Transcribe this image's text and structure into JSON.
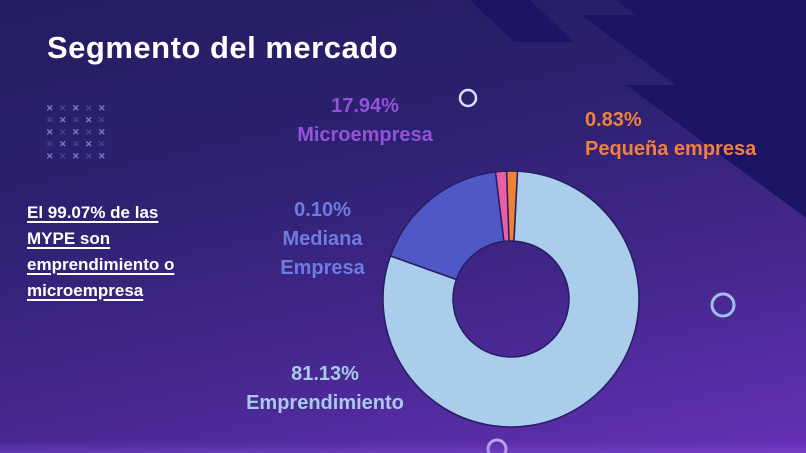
{
  "slide": {
    "title": "Segmento del mercado",
    "callout_lines": [
      "El 99.07% de las",
      "MYPE son",
      "emprendimiento o",
      "microempresa"
    ]
  },
  "chart_data": {
    "type": "pie",
    "subtype": "donut",
    "title": "Segmento del mercado",
    "annotation": "El 99.07% de las MYPE son emprendimiento o microempresa",
    "start_angle_deg": -2,
    "clockwise": true,
    "legend_position": "around",
    "segments": [
      {
        "label": "Pequeña empresa",
        "value": 0.83,
        "pct_text": "0.83%",
        "slice_color": "#ef8136",
        "label_color": "#f0813a"
      },
      {
        "label": "Emprendimiento",
        "value": 81.13,
        "pct_text": "81.13%",
        "slice_color": "#a9cdea",
        "label_color": "#a7cbe9"
      },
      {
        "label": "Microempresa",
        "value": 17.94,
        "pct_text": "17.94%",
        "slice_color": "#5057c6",
        "label_color": "#9551d8"
      },
      {
        "label": "Mediana Empresa",
        "value": 0.1,
        "pct_text": "0.10%",
        "slice_color": "#e85fa6",
        "label_color": "#6e7ce2"
      }
    ]
  },
  "theme": {
    "background_top": "#241d60",
    "background_bottom": "#6530b6",
    "bolt_color": "#1c1566",
    "title_color": "#ffffff",
    "stroke_color": "#251e60"
  },
  "decor": {
    "x_glyph": "✕",
    "grid_rows": 5,
    "grid_cols": 5,
    "x_color_light": "#7d7fd6",
    "x_color_dark": "#45459a"
  }
}
